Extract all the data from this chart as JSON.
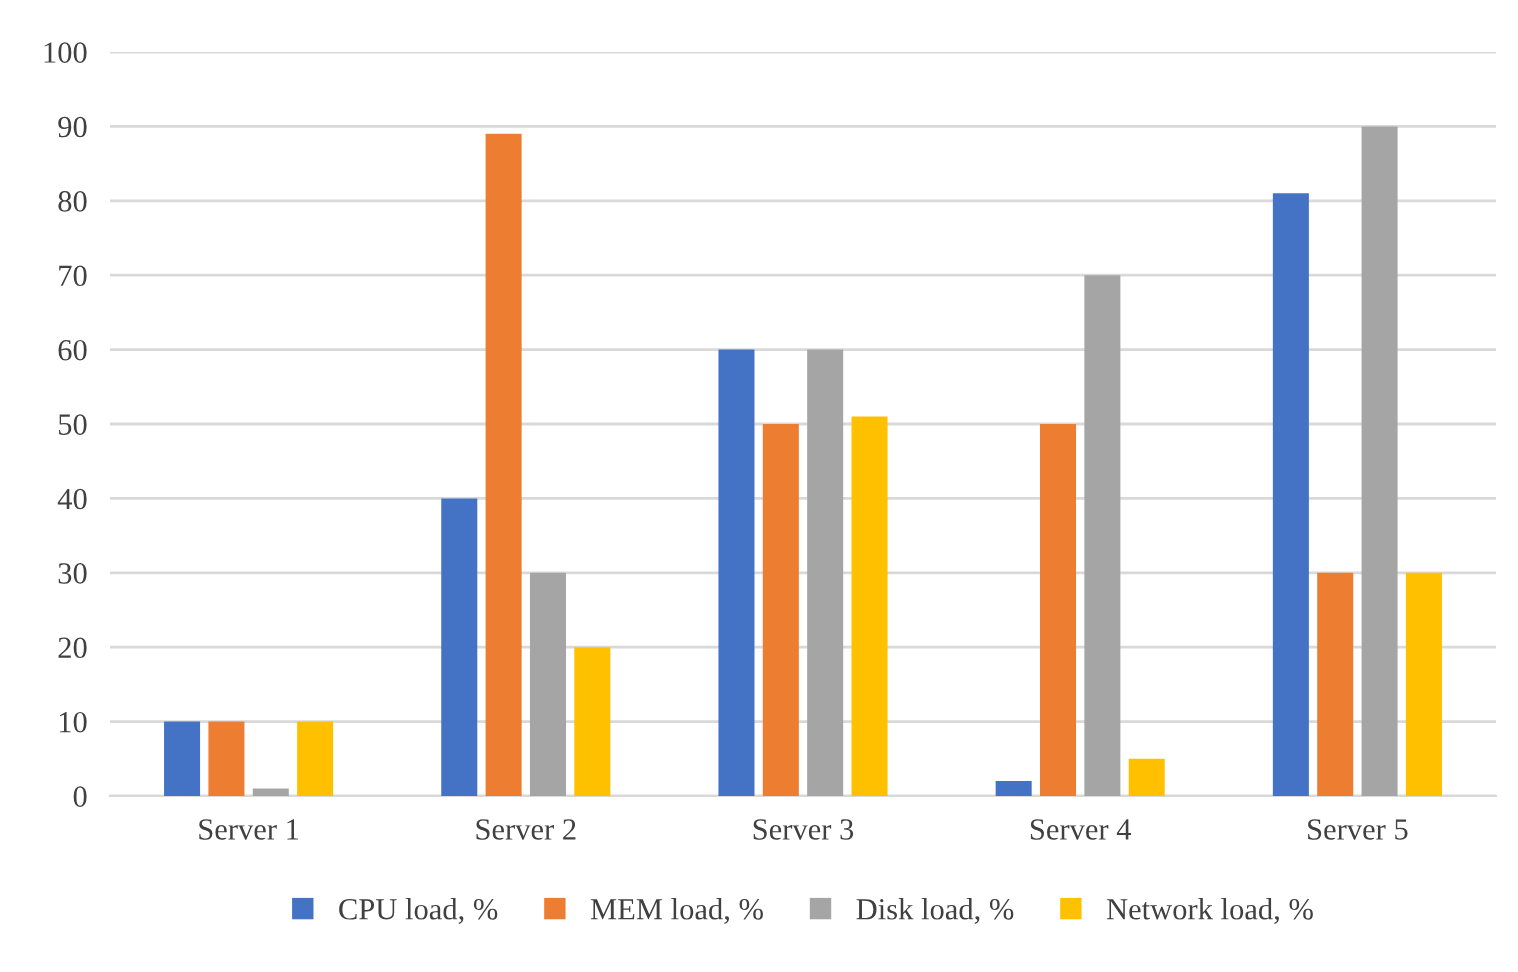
{
  "chart_data": {
    "type": "bar",
    "categories": [
      "Server 1",
      "Server 2",
      "Server 3",
      "Server 4",
      "Server 5"
    ],
    "series": [
      {
        "name": "CPU load, %",
        "color": "#4472c4",
        "values": [
          10,
          40,
          60,
          2,
          81
        ]
      },
      {
        "name": "MEM load, %",
        "color": "#ed7d31",
        "values": [
          10,
          89,
          50,
          50,
          30
        ]
      },
      {
        "name": "Disk load, %",
        "color": "#a5a5a5",
        "values": [
          1,
          30,
          60,
          70,
          90
        ]
      },
      {
        "name": "Network load, %",
        "color": "#ffc000",
        "values": [
          10,
          20,
          51,
          5,
          30
        ]
      }
    ],
    "ylim": [
      0,
      100
    ],
    "yticks": [
      0,
      10,
      20,
      30,
      40,
      50,
      60,
      70,
      80,
      90,
      100
    ],
    "grid": "y",
    "legend": "bottom"
  }
}
